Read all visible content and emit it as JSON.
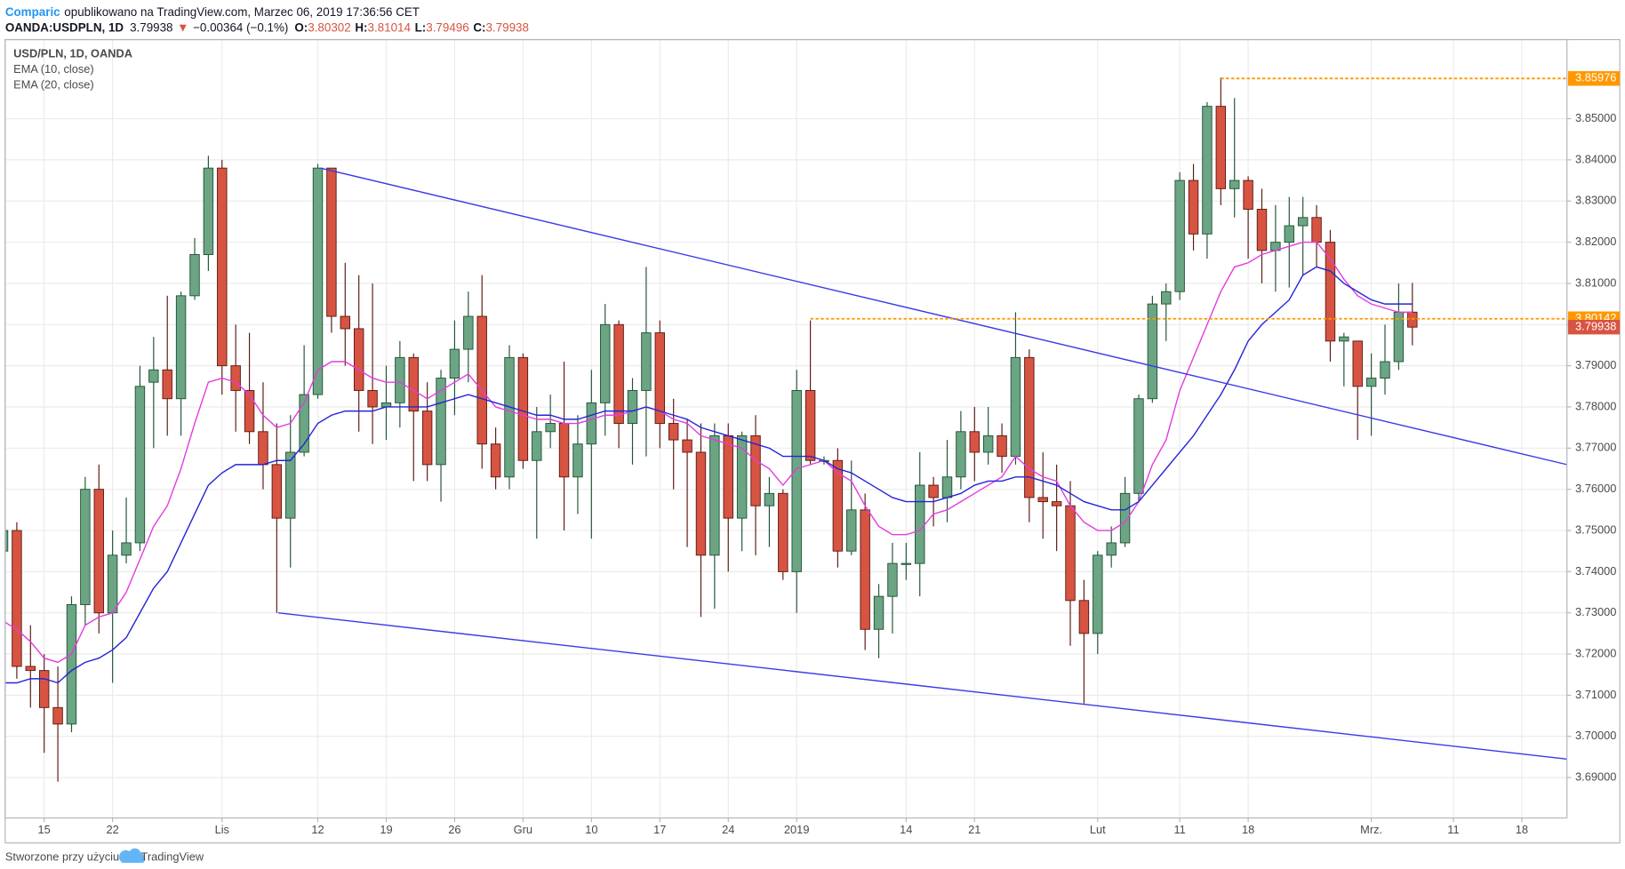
{
  "header": {
    "brand": "Comparic",
    "published": "opublikowano na TradingView.com, Marzec 06, 2019 17:36:56 CET",
    "symbol": "OANDA:USDPLN, 1D",
    "last": "3.79938",
    "arrow": "▼",
    "change": "−0.00364 (−0.1%)",
    "ohlc": [
      {
        "label": "O:",
        "value": "3.80302"
      },
      {
        "label": "H:",
        "value": "3.81014"
      },
      {
        "label": "L:",
        "value": "3.79496"
      },
      {
        "label": "C:",
        "value": "3.79938"
      }
    ]
  },
  "footer": {
    "text": "Stworzone przy użyciu",
    "brand": "TradingView"
  },
  "chart_data": {
    "type": "candlestick",
    "title": "USD/PLN, 1D, OANDA",
    "up_color": "#6ba583",
    "down_color": "#d75442",
    "up_border": "#225437",
    "down_border": "#5b1a13",
    "open": [
      3.745,
      3.75,
      3.717,
      3.716,
      3.707,
      3.703,
      3.732,
      3.76,
      3.73,
      3.744,
      3.747,
      3.786,
      3.789,
      3.782,
      3.807,
      3.817,
      3.838,
      3.79,
      3.784,
      3.774,
      3.766,
      3.753,
      3.769,
      3.783,
      3.838,
      3.802,
      3.799,
      3.784,
      3.78,
      3.781,
      3.792,
      3.779,
      3.766,
      3.787,
      3.794,
      3.802,
      3.771,
      3.763,
      3.792,
      3.767,
      3.774,
      3.776,
      3.763,
      3.771,
      3.781,
      3.8,
      3.776,
      3.784,
      3.798,
      3.776,
      3.772,
      3.769,
      3.744,
      3.773,
      3.753,
      3.773,
      3.756,
      3.759,
      3.74,
      3.784,
      3.767,
      3.767,
      3.745,
      3.755,
      3.726,
      3.734,
      3.742,
      3.742,
      3.761,
      3.758,
      3.763,
      3.774,
      3.769,
      3.773,
      3.768,
      3.792,
      3.758,
      3.757,
      3.756,
      3.733,
      3.725,
      3.744,
      3.747,
      3.759,
      3.782,
      3.805,
      3.808,
      3.835,
      3.822,
      3.853,
      3.833,
      3.835,
      3.828,
      3.818,
      3.82,
      3.824,
      3.826,
      3.82,
      3.796,
      3.796,
      3.785,
      3.787,
      3.791,
      3.80302
    ],
    "high": [
      3.752,
      3.752,
      3.727,
      3.72,
      3.717,
      3.734,
      3.763,
      3.766,
      3.75,
      3.758,
      3.79,
      3.797,
      3.807,
      3.808,
      3.821,
      3.841,
      3.84,
      3.8,
      3.798,
      3.786,
      3.776,
      3.778,
      3.795,
      3.839,
      3.838,
      3.815,
      3.812,
      3.81,
      3.79,
      3.796,
      3.793,
      3.786,
      3.789,
      3.801,
      3.808,
      3.812,
      3.775,
      3.795,
      3.793,
      3.78,
      3.783,
      3.791,
      3.778,
      3.789,
      3.805,
      3.801,
      3.787,
      3.814,
      3.801,
      3.782,
      3.777,
      3.776,
      3.776,
      3.776,
      3.774,
      3.778,
      3.763,
      3.76,
      3.789,
      3.801,
      3.768,
      3.77,
      3.767,
      3.759,
      3.737,
      3.747,
      3.747,
      3.769,
      3.763,
      3.772,
      3.779,
      3.78,
      3.78,
      3.776,
      3.803,
      3.794,
      3.769,
      3.766,
      3.762,
      3.738,
      3.745,
      3.751,
      3.763,
      3.783,
      3.807,
      3.81,
      3.837,
      3.839,
      3.854,
      3.86,
      3.855,
      3.836,
      3.833,
      3.829,
      3.831,
      3.831,
      3.829,
      3.823,
      3.798,
      3.796,
      3.793,
      3.8,
      3.81,
      3.81014
    ],
    "low": [
      3.742,
      3.714,
      3.707,
      3.696,
      3.689,
      3.701,
      3.727,
      3.725,
      3.713,
      3.742,
      3.745,
      3.77,
      3.773,
      3.773,
      3.806,
      3.813,
      3.783,
      3.774,
      3.771,
      3.76,
      3.73,
      3.741,
      3.768,
      3.782,
      3.798,
      3.79,
      3.774,
      3.771,
      3.772,
      3.775,
      3.762,
      3.762,
      3.757,
      3.778,
      3.786,
      3.765,
      3.76,
      3.76,
      3.765,
      3.748,
      3.77,
      3.75,
      3.754,
      3.748,
      3.773,
      3.77,
      3.766,
      3.768,
      3.77,
      3.76,
      3.746,
      3.729,
      3.731,
      3.74,
      3.745,
      3.744,
      3.746,
      3.738,
      3.73,
      3.766,
      3.766,
      3.741,
      3.744,
      3.721,
      3.719,
      3.725,
      3.738,
      3.734,
      3.751,
      3.752,
      3.76,
      3.762,
      3.766,
      3.764,
      3.766,
      3.752,
      3.748,
      3.745,
      3.722,
      3.708,
      3.72,
      3.741,
      3.746,
      3.757,
      3.781,
      3.796,
      3.806,
      3.818,
      3.816,
      3.829,
      3.826,
      3.816,
      3.81,
      3.808,
      3.809,
      3.812,
      3.814,
      3.791,
      3.785,
      3.772,
      3.773,
      3.783,
      3.789,
      3.79496
    ],
    "close": [
      3.75,
      3.717,
      3.716,
      3.707,
      3.703,
      3.732,
      3.76,
      3.73,
      3.744,
      3.747,
      3.785,
      3.789,
      3.782,
      3.807,
      3.817,
      3.838,
      3.79,
      3.784,
      3.774,
      3.766,
      3.753,
      3.769,
      3.783,
      3.838,
      3.802,
      3.799,
      3.784,
      3.78,
      3.781,
      3.792,
      3.779,
      3.766,
      3.787,
      3.794,
      3.802,
      3.771,
      3.763,
      3.792,
      3.767,
      3.774,
      3.776,
      3.763,
      3.771,
      3.781,
      3.8,
      3.776,
      3.784,
      3.798,
      3.776,
      3.772,
      3.769,
      3.744,
      3.773,
      3.753,
      3.773,
      3.756,
      3.759,
      3.74,
      3.784,
      3.767,
      3.767,
      3.745,
      3.755,
      3.726,
      3.734,
      3.742,
      3.742,
      3.761,
      3.758,
      3.763,
      3.774,
      3.769,
      3.773,
      3.768,
      3.792,
      3.758,
      3.757,
      3.756,
      3.733,
      3.725,
      3.744,
      3.747,
      3.759,
      3.782,
      3.805,
      3.808,
      3.835,
      3.822,
      3.853,
      3.833,
      3.835,
      3.828,
      3.818,
      3.82,
      3.824,
      3.826,
      3.82,
      3.796,
      3.797,
      3.785,
      3.787,
      3.791,
      3.803,
      3.79938
    ],
    "series": [
      {
        "name": "EMA (10, close)",
        "color": "#e33be0",
        "values": [
          3.728,
          3.726,
          3.723,
          3.719,
          3.718,
          3.72,
          3.727,
          3.729,
          3.73,
          3.735,
          3.743,
          3.751,
          3.756,
          3.765,
          3.776,
          3.786,
          3.787,
          3.786,
          3.783,
          3.778,
          3.775,
          3.776,
          3.781,
          3.789,
          3.791,
          3.791,
          3.789,
          3.787,
          3.786,
          3.786,
          3.784,
          3.782,
          3.784,
          3.786,
          3.788,
          3.784,
          3.78,
          3.779,
          3.778,
          3.777,
          3.777,
          3.776,
          3.776,
          3.777,
          3.778,
          3.778,
          3.779,
          3.78,
          3.779,
          3.777,
          3.776,
          3.773,
          3.772,
          3.771,
          3.77,
          3.767,
          3.765,
          3.761,
          3.765,
          3.766,
          3.767,
          3.764,
          3.762,
          3.756,
          3.751,
          3.749,
          3.749,
          3.75,
          3.754,
          3.755,
          3.757,
          3.759,
          3.761,
          3.763,
          3.768,
          3.765,
          3.763,
          3.762,
          3.756,
          3.752,
          3.75,
          3.75,
          3.752,
          3.757,
          3.766,
          3.772,
          3.784,
          3.792,
          3.8,
          3.808,
          3.814,
          3.815,
          3.817,
          3.818,
          3.819,
          3.82,
          3.82,
          3.816,
          3.811,
          3.807,
          3.805,
          3.804,
          3.803,
          3.803
        ]
      },
      {
        "name": "EMA (20, close)",
        "color": "#2424d8",
        "values": [
          3.713,
          3.713,
          3.714,
          3.714,
          3.713,
          3.716,
          3.718,
          3.719,
          3.721,
          3.724,
          3.73,
          3.736,
          3.74,
          3.747,
          3.754,
          3.761,
          3.764,
          3.766,
          3.766,
          3.766,
          3.767,
          3.767,
          3.771,
          3.776,
          3.778,
          3.779,
          3.779,
          3.779,
          3.78,
          3.78,
          3.78,
          3.78,
          3.781,
          3.782,
          3.783,
          3.782,
          3.781,
          3.78,
          3.779,
          3.778,
          3.778,
          3.777,
          3.777,
          3.778,
          3.779,
          3.779,
          3.779,
          3.78,
          3.779,
          3.778,
          3.777,
          3.775,
          3.774,
          3.773,
          3.772,
          3.771,
          3.77,
          3.768,
          3.768,
          3.768,
          3.767,
          3.765,
          3.764,
          3.762,
          3.76,
          3.758,
          3.757,
          3.757,
          3.757,
          3.758,
          3.759,
          3.761,
          3.762,
          3.762,
          3.763,
          3.763,
          3.762,
          3.761,
          3.759,
          3.757,
          3.756,
          3.755,
          3.755,
          3.757,
          3.761,
          3.765,
          3.769,
          3.773,
          3.778,
          3.783,
          3.789,
          3.796,
          3.8,
          3.803,
          3.806,
          3.812,
          3.814,
          3.813,
          3.81,
          3.808,
          3.806,
          3.805,
          3.805,
          3.805
        ]
      }
    ],
    "trendlines": [
      {
        "color": "#3a3ae8",
        "x": [
          23.2,
          114.3
        ],
        "y": [
          3.838,
          3.766
        ]
      },
      {
        "color": "#3a3ae8",
        "x": [
          20.1,
          114.3
        ],
        "y": [
          3.73,
          3.6945
        ]
      }
    ],
    "hlines": [
      {
        "value": 3.85976,
        "start": 89,
        "color": "#ff9800"
      },
      {
        "value": 3.80142,
        "start": 59,
        "color": "#ff9800"
      }
    ],
    "last_price": 3.79938,
    "xlim": [
      0.15,
      114.3
    ],
    "ylim": [
      3.6802,
      3.8692
    ],
    "xticks": [
      {
        "value": 3,
        "label": "15"
      },
      {
        "value": 8,
        "label": "22"
      },
      {
        "value": 16,
        "label": "Lis"
      },
      {
        "value": 23,
        "label": "12"
      },
      {
        "value": 28,
        "label": "19"
      },
      {
        "value": 33,
        "label": "26"
      },
      {
        "value": 38,
        "label": "Gru"
      },
      {
        "value": 43,
        "label": "10"
      },
      {
        "value": 48,
        "label": "17"
      },
      {
        "value": 53,
        "label": "24"
      },
      {
        "value": 58,
        "label": "2019"
      },
      {
        "value": 66,
        "label": "14"
      },
      {
        "value": 71,
        "label": "21"
      },
      {
        "value": 80,
        "label": "Lut"
      },
      {
        "value": 86,
        "label": "11"
      },
      {
        "value": 91,
        "label": "18"
      },
      {
        "value": 100,
        "label": "Mrz."
      },
      {
        "value": 106,
        "label": "11"
      },
      {
        "value": 111,
        "label": "18"
      }
    ],
    "yticks": [
      {
        "value": 3.69,
        "label": "3.69000"
      },
      {
        "value": 3.7,
        "label": "3.70000"
      },
      {
        "value": 3.71,
        "label": "3.71000"
      },
      {
        "value": 3.72,
        "label": "3.72000"
      },
      {
        "value": 3.73,
        "label": "3.73000"
      },
      {
        "value": 3.74,
        "label": "3.74000"
      },
      {
        "value": 3.75,
        "label": "3.75000"
      },
      {
        "value": 3.76,
        "label": "3.76000"
      },
      {
        "value": 3.77,
        "label": "3.77000"
      },
      {
        "value": 3.78,
        "label": "3.78000"
      },
      {
        "value": 3.79,
        "label": "3.79000"
      },
      {
        "value": 3.8,
        "label": "3.80000"
      },
      {
        "value": 3.81,
        "label": "3.81000"
      },
      {
        "value": 3.82,
        "label": "3.82000"
      },
      {
        "value": 3.83,
        "label": "3.83000"
      },
      {
        "value": 3.84,
        "label": "3.84000"
      },
      {
        "value": 3.85,
        "label": "3.85000"
      }
    ],
    "grid": true
  }
}
